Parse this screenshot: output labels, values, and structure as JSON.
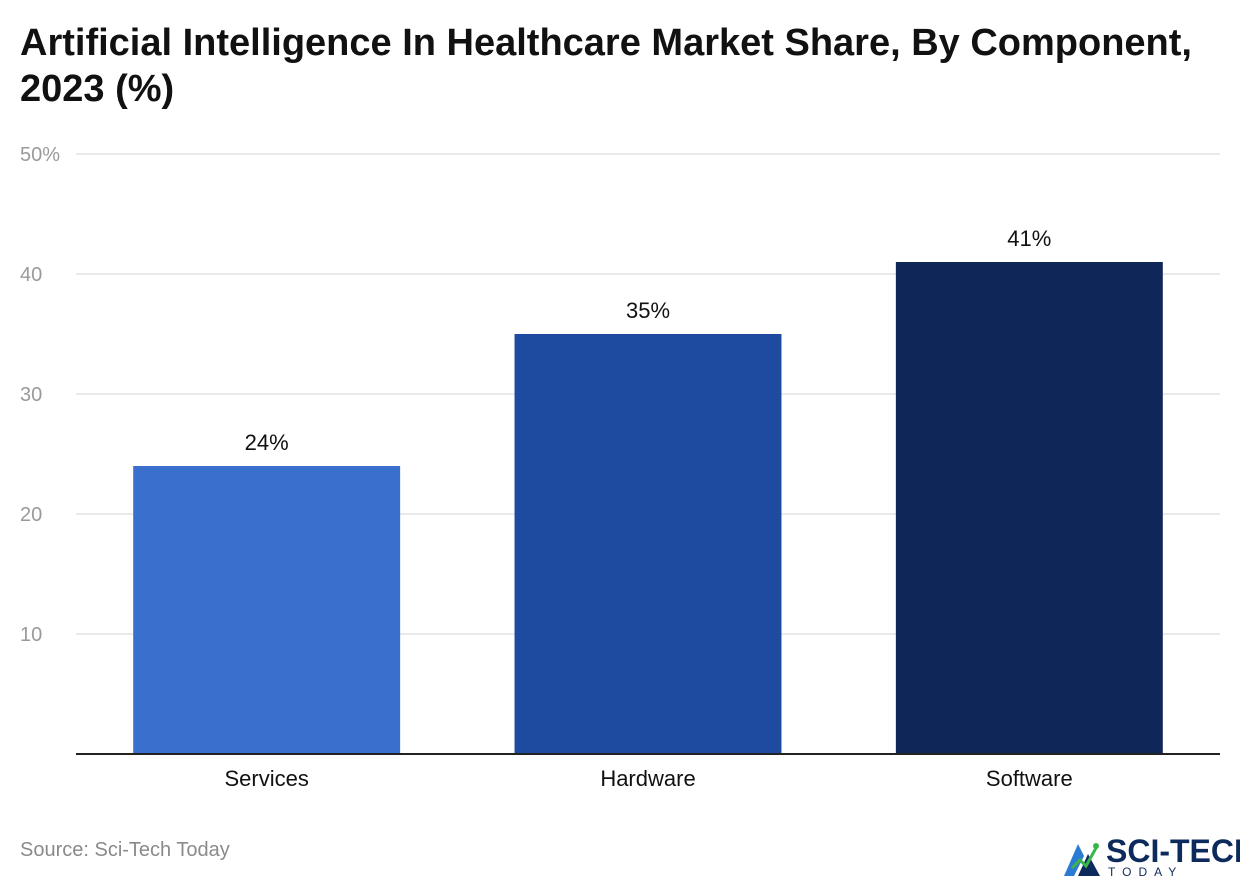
{
  "header": {
    "title": "Artificial Intelligence In Healthcare Market Share, By Component, 2023 (%)"
  },
  "chart_data": {
    "type": "bar",
    "categories": [
      "Services",
      "Hardware",
      "Software"
    ],
    "values": [
      24,
      35,
      41
    ],
    "value_labels": [
      "24%",
      "35%",
      "41%"
    ],
    "colors": [
      "#3a6fce",
      "#1e4ba0",
      "#0e2758"
    ],
    "ylim": [
      0,
      50
    ],
    "yticks": [
      {
        "value": 10,
        "label": "10"
      },
      {
        "value": 20,
        "label": "20"
      },
      {
        "value": 30,
        "label": "30"
      },
      {
        "value": 40,
        "label": "40"
      },
      {
        "value": 50,
        "label": "50%"
      }
    ],
    "grid": true,
    "xlabel": "",
    "ylabel": ""
  },
  "footer": {
    "source": "Source: Sci-Tech Today"
  },
  "logo": {
    "name": "SCI-TECH",
    "sub": "TODAY",
    "colors": {
      "primary": "#0d2a5c",
      "accent": "#3ab54a",
      "blue": "#2b7bd4"
    }
  }
}
